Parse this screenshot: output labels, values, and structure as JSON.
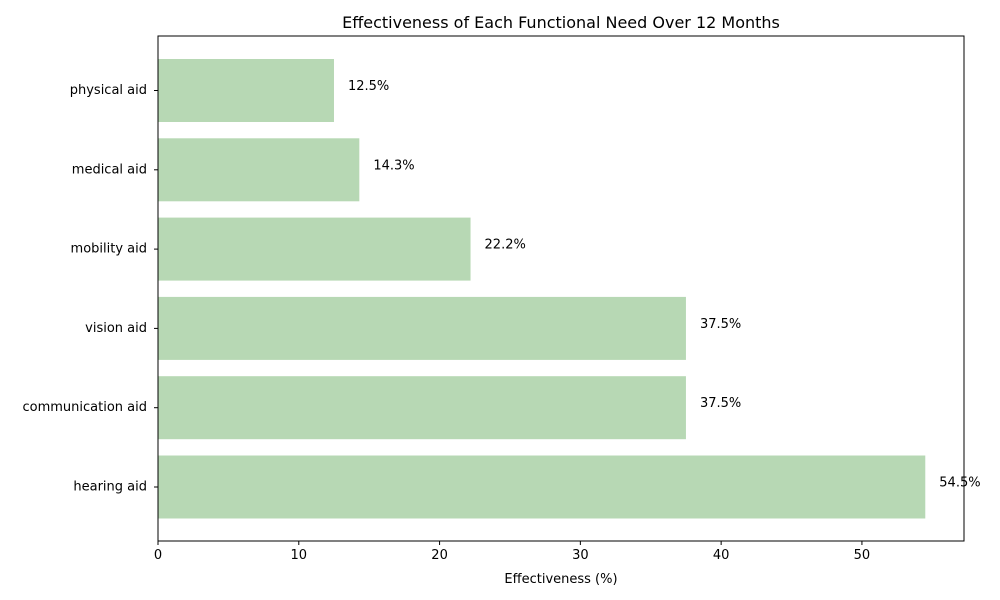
{
  "chart_data": {
    "type": "bar",
    "orientation": "horizontal",
    "title": "Effectiveness of Each Functional Need Over 12 Months",
    "xlabel": "Effectiveness (%)",
    "ylabel": "",
    "xlim": [
      0,
      57.25
    ],
    "xticks": [
      0,
      10,
      20,
      30,
      40,
      50
    ],
    "categories": [
      "hearing aid",
      "communication aid",
      "vision aid",
      "mobility aid",
      "medical aid",
      "physical aid"
    ],
    "values": [
      54.5,
      37.5,
      37.5,
      22.2,
      14.3,
      12.5
    ],
    "value_labels": [
      "54.5%",
      "37.5%",
      "37.5%",
      "22.2%",
      "14.3%",
      "12.5%"
    ],
    "bar_color": "#b7d8b4",
    "grid": false
  }
}
